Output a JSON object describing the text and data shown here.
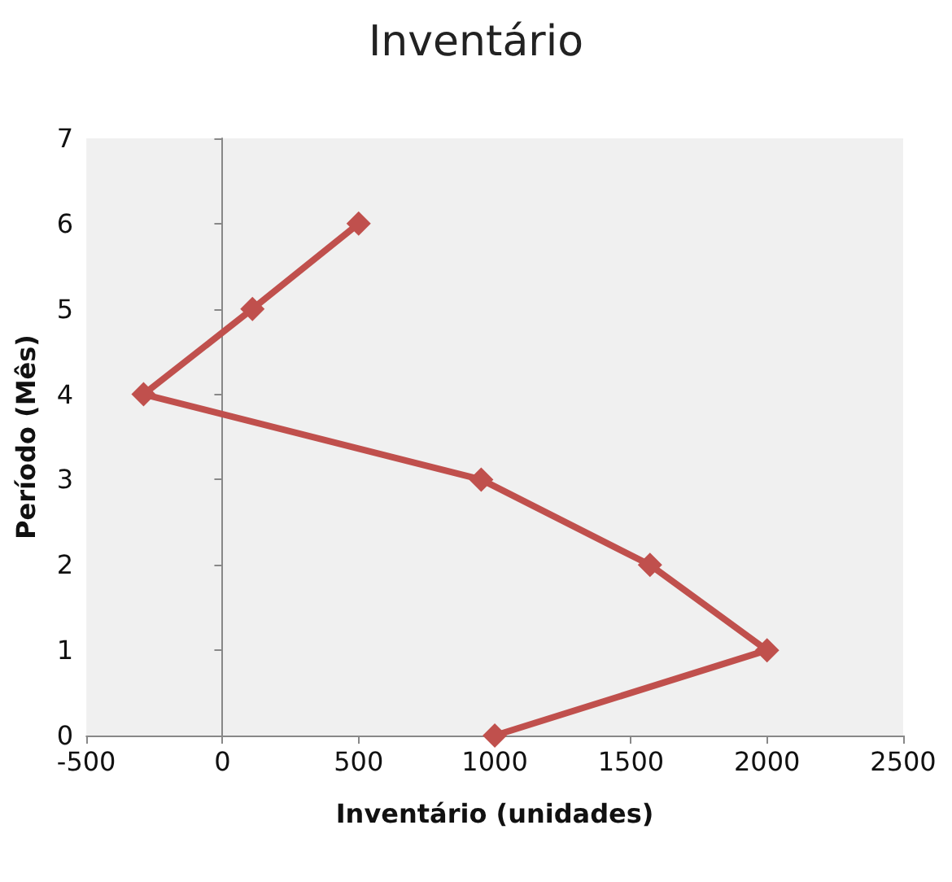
{
  "chart_data": {
    "type": "line",
    "title": "Inventário",
    "xlabel": "Inventário (unidades)",
    "ylabel": "Período (Mês)",
    "series": [
      {
        "color": "#c0504d",
        "x": [
          1000,
          2000,
          1570,
          950,
          -290,
          110,
          500
        ],
        "values": [
          0,
          1,
          2,
          3,
          4,
          5,
          6
        ]
      }
    ],
    "xlim": [
      -500,
      2500
    ],
    "xticks": [
      -500,
      0,
      500,
      1000,
      1500,
      2000,
      2500
    ],
    "ylim": [
      0,
      7
    ],
    "yticks": [
      0,
      1,
      2,
      3,
      4,
      5,
      6,
      7
    ],
    "marker": "diamond",
    "line_style": "solid"
  }
}
